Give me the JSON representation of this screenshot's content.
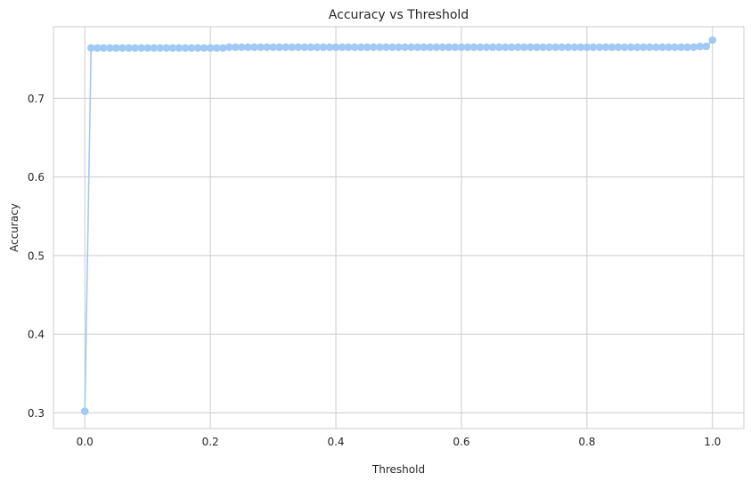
{
  "chart_data": {
    "type": "line",
    "title": "Accuracy vs Threshold",
    "xlabel": "Threshold",
    "ylabel": "Accuracy",
    "xlim": [
      -0.05,
      1.05
    ],
    "ylim": [
      0.28,
      0.791
    ],
    "x_ticks": [
      0.0,
      0.2,
      0.4,
      0.6,
      0.8,
      1.0
    ],
    "x_tick_labels": [
      "0.0",
      "0.2",
      "0.4",
      "0.6",
      "0.8",
      "1.0"
    ],
    "y_ticks": [
      0.3,
      0.4,
      0.5,
      0.6,
      0.7
    ],
    "y_tick_labels": [
      "0.3",
      "0.4",
      "0.5",
      "0.6",
      "0.7"
    ],
    "grid": true,
    "legend": false,
    "colors": {
      "series": "#a1c9f4",
      "grid": "#cccccc",
      "axis_frame": "#cccccc",
      "text": "#262626"
    },
    "series": [
      {
        "marker": "circle",
        "x": [
          0.0,
          0.01,
          0.02,
          0.03,
          0.04,
          0.05,
          0.06,
          0.07,
          0.08,
          0.09,
          0.1,
          0.11,
          0.12,
          0.13,
          0.14,
          0.15,
          0.16,
          0.17,
          0.18,
          0.19,
          0.2,
          0.21,
          0.22,
          0.23,
          0.24,
          0.25,
          0.26,
          0.27,
          0.28,
          0.29,
          0.3,
          0.31,
          0.32,
          0.33,
          0.34,
          0.35,
          0.36,
          0.37,
          0.38,
          0.39,
          0.4,
          0.41,
          0.42,
          0.43,
          0.44,
          0.45,
          0.46,
          0.47,
          0.48,
          0.49,
          0.5,
          0.51,
          0.52,
          0.53,
          0.54,
          0.55,
          0.56,
          0.57,
          0.58,
          0.59,
          0.6,
          0.61,
          0.62,
          0.63,
          0.64,
          0.65,
          0.66,
          0.67,
          0.68,
          0.69,
          0.7,
          0.71,
          0.72,
          0.73,
          0.74,
          0.75,
          0.76,
          0.77,
          0.78,
          0.79,
          0.8,
          0.81,
          0.82,
          0.83,
          0.84,
          0.85,
          0.86,
          0.87,
          0.88,
          0.89,
          0.9,
          0.91,
          0.92,
          0.93,
          0.94,
          0.95,
          0.96,
          0.97,
          0.98,
          0.99,
          1.0
        ],
        "y": [
          0.302,
          0.764,
          0.764,
          0.764,
          0.764,
          0.764,
          0.764,
          0.764,
          0.764,
          0.764,
          0.764,
          0.764,
          0.764,
          0.764,
          0.764,
          0.764,
          0.764,
          0.764,
          0.764,
          0.764,
          0.764,
          0.764,
          0.764,
          0.765,
          0.765,
          0.765,
          0.765,
          0.765,
          0.765,
          0.765,
          0.765,
          0.765,
          0.765,
          0.765,
          0.765,
          0.765,
          0.765,
          0.765,
          0.765,
          0.765,
          0.765,
          0.765,
          0.765,
          0.765,
          0.765,
          0.765,
          0.765,
          0.765,
          0.765,
          0.765,
          0.765,
          0.765,
          0.765,
          0.765,
          0.765,
          0.765,
          0.765,
          0.765,
          0.765,
          0.765,
          0.765,
          0.765,
          0.765,
          0.765,
          0.765,
          0.765,
          0.765,
          0.765,
          0.765,
          0.765,
          0.765,
          0.765,
          0.765,
          0.765,
          0.765,
          0.765,
          0.765,
          0.765,
          0.765,
          0.765,
          0.765,
          0.765,
          0.765,
          0.765,
          0.765,
          0.765,
          0.765,
          0.765,
          0.765,
          0.765,
          0.765,
          0.765,
          0.765,
          0.765,
          0.765,
          0.765,
          0.765,
          0.765,
          0.766,
          0.766,
          0.774
        ]
      }
    ]
  }
}
